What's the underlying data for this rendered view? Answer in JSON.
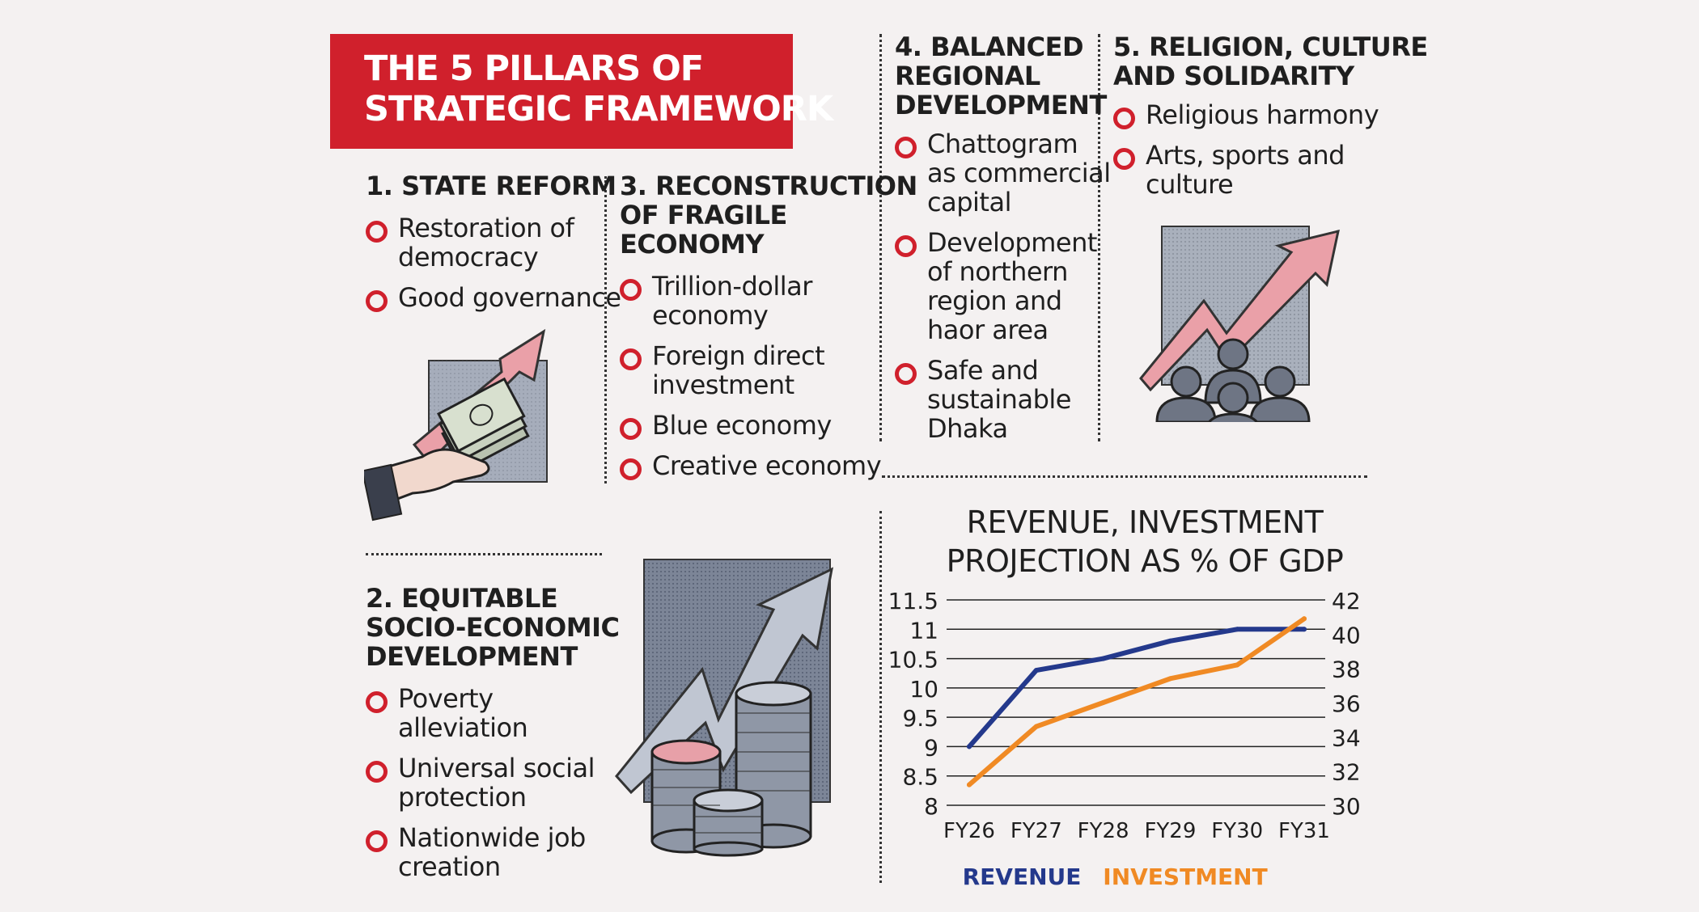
{
  "title": [
    "THE 5 PILLARS OF",
    "STRATEGIC FRAMEWORK"
  ],
  "pillars": {
    "p1": {
      "heading": [
        "1. STATE REFORM"
      ],
      "items": [
        [
          "Restoration of",
          "democracy"
        ],
        [
          "Good governance"
        ]
      ]
    },
    "p2": {
      "heading": [
        "2. EQUITABLE",
        "SOCIO-ECONOMIC",
        "DEVELOPMENT"
      ],
      "items": [
        [
          "Poverty",
          "alleviation"
        ],
        [
          "Universal social",
          "protection"
        ],
        [
          "Nationwide job",
          "creation"
        ]
      ]
    },
    "p3": {
      "heading": [
        "3. RECONSTRUCTION",
        "OF FRAGILE",
        "ECONOMY"
      ],
      "items": [
        [
          "Trillion-dollar",
          "economy"
        ],
        [
          "Foreign direct",
          "investment"
        ],
        [
          "Blue economy"
        ],
        [
          "Creative economy"
        ]
      ]
    },
    "p4": {
      "heading": [
        "4. BALANCED",
        "REGIONAL",
        "DEVELOPMENT"
      ],
      "items": [
        [
          "Chattogram",
          "as commercial",
          "capital"
        ],
        [
          "Development",
          "of northern",
          "region and",
          "haor area"
        ],
        [
          "Safe and",
          "sustainable",
          "Dhaka"
        ]
      ]
    },
    "p5": {
      "heading": [
        "5. RELIGION, CULTURE",
        "AND SOLIDARITY"
      ],
      "items": [
        [
          "Religious harmony"
        ],
        [
          "Arts, sports and",
          "culture"
        ]
      ]
    }
  },
  "colors": {
    "accent": "#d0202c",
    "revenue": "#24398c",
    "investment": "#f08a24"
  },
  "icons": [
    "money-hand-arrow-icon",
    "coins-arrow-icon",
    "people-arrow-icon"
  ],
  "chart_data": {
    "type": "line",
    "title": [
      "REVENUE, INVESTMENT",
      "PROJECTION AS % OF GDP"
    ],
    "categories": [
      "FY26",
      "FY27",
      "FY28",
      "FY29",
      "FY30",
      "FY31"
    ],
    "series": [
      {
        "name": "REVENUE",
        "axis": "left",
        "values": [
          9.0,
          10.3,
          10.5,
          10.8,
          11.0,
          11.0
        ]
      },
      {
        "name": "INVESTMENT",
        "axis": "right",
        "values": [
          31.2,
          34.6,
          36.0,
          37.4,
          38.2,
          40.9
        ]
      }
    ],
    "y_left": {
      "min": 8,
      "max": 11.5,
      "ticks": [
        "8",
        "8.5",
        "9",
        "9.5",
        "10",
        "10.5",
        "11",
        "11.5"
      ]
    },
    "y_right": {
      "min": 30,
      "max": 42,
      "ticks": [
        "30",
        "32",
        "34",
        "36",
        "38",
        "40",
        "42"
      ]
    },
    "grid": true,
    "legend": "bottom"
  }
}
